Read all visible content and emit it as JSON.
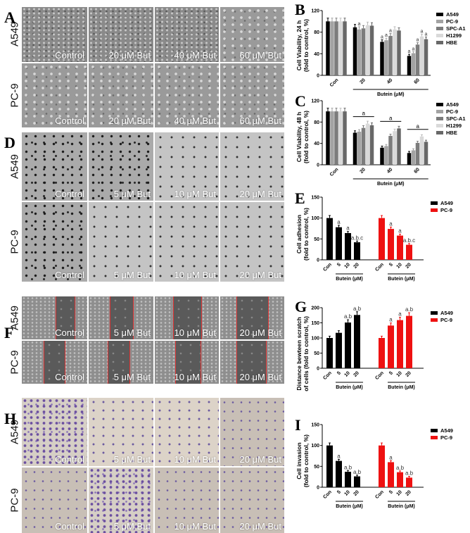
{
  "panels": {
    "A": {
      "letter": "A",
      "rows": [
        "A549",
        "PC-9"
      ],
      "captions": [
        "Control",
        "20 μM But",
        "40 μM But",
        "60 μM But"
      ]
    },
    "D": {
      "letter": "D",
      "rows": [
        "A549",
        "PC-9"
      ],
      "captions": [
        "Control",
        "5 μM But",
        "10 μM But",
        "20 μM But"
      ]
    },
    "F": {
      "letter": "F",
      "rows": [
        "A549",
        "PC-9"
      ],
      "captions": [
        "Control",
        "5 μM But",
        "10 μM But",
        "20 μM But"
      ]
    },
    "H": {
      "letter": "H",
      "rows": [
        "A549",
        "PC-9"
      ],
      "captions": [
        "Control",
        "5 μM But",
        "10 μM But",
        "20 μM But"
      ]
    }
  },
  "chart_data": [
    {
      "panel": "B",
      "type": "bar",
      "ylabel": "Cell Viability, 24 h\n(fold to control, %)",
      "xlabel": "Butein (μM)",
      "ylim": [
        0,
        120
      ],
      "yticks": [
        0,
        40,
        80,
        120
      ],
      "categories": [
        "Con",
        "20",
        "40",
        "60"
      ],
      "series": [
        {
          "name": "A549",
          "color": "#000000",
          "values": [
            100,
            89,
            62,
            36
          ],
          "labels": [
            "",
            "",
            "a",
            "a"
          ]
        },
        {
          "name": "PC-9",
          "color": "#a3a3a3",
          "values": [
            100,
            85,
            65,
            41
          ],
          "labels": [
            "",
            "a",
            "a",
            "a"
          ]
        },
        {
          "name": "SPC-A1",
          "color": "#7c7c7c",
          "values": [
            100,
            87,
            73,
            57
          ],
          "labels": [
            "",
            "",
            "a",
            "a"
          ]
        },
        {
          "name": "H1299",
          "color": "#d9d9d9",
          "values": [
            100,
            93,
            85,
            72
          ],
          "labels": [
            "",
            "",
            "",
            "a"
          ]
        },
        {
          "name": "HBE",
          "color": "#686868",
          "values": [
            100,
            92,
            83,
            67
          ],
          "labels": [
            "",
            "",
            "",
            "a"
          ]
        }
      ]
    },
    {
      "panel": "C",
      "type": "bar",
      "ylabel": "Cell Viability, 48 h\n(fold to control, %)",
      "xlabel": "Butein (μM)",
      "ylim": [
        0,
        120
      ],
      "yticks": [
        0,
        40,
        80,
        120
      ],
      "categories": [
        "Con",
        "20",
        "40",
        "60"
      ],
      "group_labels": [
        "",
        "a",
        "a",
        "a"
      ],
      "series": [
        {
          "name": "A549",
          "color": "#000000",
          "values": [
            100,
            60,
            32,
            22
          ]
        },
        {
          "name": "PC-9",
          "color": "#a3a3a3",
          "values": [
            100,
            62,
            35,
            27
          ]
        },
        {
          "name": "SPC-A1",
          "color": "#7c7c7c",
          "values": [
            100,
            69,
            54,
            41
          ]
        },
        {
          "name": "H1299",
          "color": "#d9d9d9",
          "values": [
            100,
            77,
            63,
            53
          ]
        },
        {
          "name": "HBE",
          "color": "#686868",
          "values": [
            100,
            74,
            68,
            43
          ]
        }
      ]
    },
    {
      "panel": "E",
      "type": "bar",
      "ylabel": "Cell adhesion\n(fold to control, %)",
      "xlabel": "Butein (μM)",
      "ylim": [
        0,
        150
      ],
      "yticks": [
        0,
        50,
        100,
        150
      ],
      "categories": [
        "Con",
        "5",
        "10",
        "20"
      ],
      "series": [
        {
          "name": "A549",
          "color": "#000000",
          "values": [
            100,
            78,
            64,
            42
          ],
          "labels": [
            "",
            "a",
            "a",
            "a.b.c"
          ]
        },
        {
          "name": "PC-9",
          "color": "#ee1111",
          "values": [
            100,
            74,
            58,
            36
          ],
          "labels": [
            "",
            "a",
            "a",
            "a.b.c"
          ]
        }
      ]
    },
    {
      "panel": "G",
      "type": "bar",
      "ylabel": "Distance bewteen scratch\nof cells (fold to control, %)",
      "xlabel": "Butein (μM)",
      "ylim": [
        0,
        200
      ],
      "yticks": [
        0,
        50,
        100,
        150,
        200
      ],
      "categories": [
        "Con",
        "5",
        "10",
        "20"
      ],
      "series": [
        {
          "name": "A549",
          "color": "#000000",
          "values": [
            100,
            117,
            151,
            176
          ],
          "labels": [
            "",
            "",
            "a.b",
            "a.b"
          ]
        },
        {
          "name": "PC-9",
          "color": "#ee1111",
          "values": [
            100,
            141,
            159,
            173
          ],
          "labels": [
            "",
            "a",
            "a",
            "a.b"
          ]
        }
      ]
    },
    {
      "panel": "I",
      "type": "bar",
      "ylabel": "Cell invasion\n(fold to control, %)",
      "xlabel": "Butein (μM)",
      "ylim": [
        0,
        150
      ],
      "yticks": [
        0,
        50,
        100,
        150
      ],
      "categories": [
        "Con",
        "5",
        "10",
        "20"
      ],
      "series": [
        {
          "name": "A549",
          "color": "#000000",
          "values": [
            100,
            63,
            37,
            26
          ],
          "labels": [
            "",
            "a",
            "a.b",
            "a.b"
          ]
        },
        {
          "name": "PC-9",
          "color": "#ee1111",
          "values": [
            100,
            60,
            36,
            23
          ],
          "labels": [
            "",
            "a",
            "a.b",
            "a.b"
          ]
        }
      ]
    }
  ]
}
